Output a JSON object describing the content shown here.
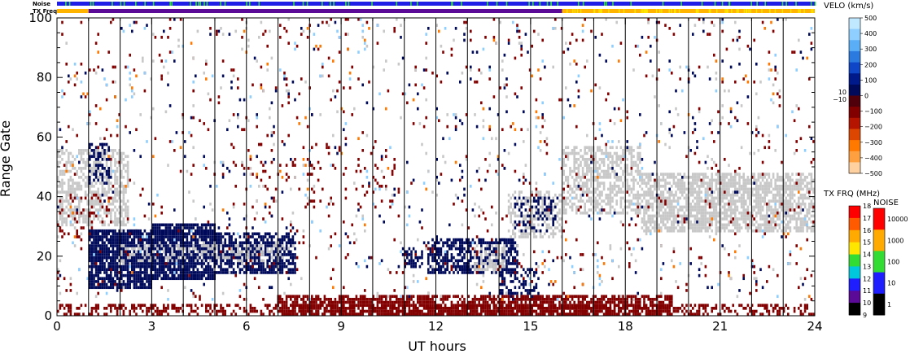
{
  "chart_data": {
    "type": "heatmap",
    "xlabel": "UT hours",
    "ylabel": "Range Gate",
    "xlim": [
      0,
      24
    ],
    "ylim": [
      0,
      100
    ],
    "x_ticks": [
      0,
      3,
      6,
      9,
      12,
      15,
      18,
      21,
      24
    ],
    "y_ticks": [
      0,
      20,
      40,
      60,
      80,
      100
    ],
    "scan_boundaries_ut": [
      1,
      2,
      3,
      4,
      5,
      6,
      7,
      8,
      9,
      10,
      11,
      12,
      13,
      14,
      15,
      16,
      17,
      18,
      19,
      20,
      21,
      22,
      23
    ],
    "status_bars": {
      "noise_label": "Noise",
      "txfreq_label": "TX Freq",
      "noise_color": "#1e1ee6",
      "noise_highlight_color": "#32dc32",
      "txfreq_segments": [
        {
          "ut_start": 0.0,
          "ut_end": 1.0,
          "color": "#ffb400"
        },
        {
          "ut_start": 1.0,
          "ut_end": 16.0,
          "color": "#5a0a96"
        },
        {
          "ut_start": 16.0,
          "ut_end": 24.0,
          "color": "#ffb400"
        }
      ]
    },
    "velocity_colorbar": {
      "title": "VELO (km/s)",
      "range": [
        -500,
        500
      ],
      "tick_labels": [
        "500",
        "400",
        "300",
        "200",
        "100",
        "0",
        "−100",
        "−200",
        "−300",
        "−400",
        "−500"
      ],
      "threshold_labels": [
        "10",
        "−10"
      ],
      "colors": [
        "#c0e8ff",
        "#8fcfff",
        "#5aaef5",
        "#2a7ae0",
        "#0f46c8",
        "#001a8c",
        "#000a5a",
        "#50000a",
        "#820000",
        "#b41400",
        "#dc4600",
        "#ff7800",
        "#ffa040",
        "#ffd0a0"
      ]
    },
    "txfreq_colorbar": {
      "title": "TX FRQ (MHz)",
      "tick_labels": [
        "18",
        "17",
        "16",
        "15",
        "14",
        "13",
        "12",
        "11",
        "10",
        "9"
      ],
      "colors": [
        "#ff0000",
        "#ff5a00",
        "#ffaa00",
        "#ffe600",
        "#32dc32",
        "#00c8dc",
        "#1e1eff",
        "#5a0a96",
        "#000000"
      ]
    },
    "noise_colorbar": {
      "title": "NOISE",
      "tick_labels": [
        "10000",
        "1000",
        "100",
        "10",
        "1"
      ],
      "colors": [
        "#ff0000",
        "#ffaa00",
        "#32dc32",
        "#1e1eff",
        "#000000"
      ]
    },
    "ground_scatter_color": "#c8c8c8",
    "scatter_regions": [
      {
        "ut_start": 0.0,
        "ut_end": 2.3,
        "gate_lo": 30,
        "gate_hi": 56,
        "color": "#c8c8c8",
        "density": 0.55
      },
      {
        "ut_start": 1.0,
        "ut_end": 1.7,
        "gate_lo": 44,
        "gate_hi": 58,
        "color": "#000a5a",
        "density": 0.5
      },
      {
        "ut_start": 0.0,
        "ut_end": 1.8,
        "gate_lo": 26,
        "gate_hi": 40,
        "color": "#820000",
        "density": 0.12
      },
      {
        "ut_start": 1.0,
        "ut_end": 3.0,
        "gate_lo": 9,
        "gate_hi": 29,
        "color": "#000a5a",
        "density": 0.85
      },
      {
        "ut_start": 3.0,
        "ut_end": 5.0,
        "gate_lo": 12,
        "gate_hi": 31,
        "color": "#000a5a",
        "density": 0.88
      },
      {
        "ut_start": 5.0,
        "ut_end": 7.6,
        "gate_lo": 14,
        "gate_hi": 28,
        "color": "#000a5a",
        "density": 0.72
      },
      {
        "ut_start": 2.0,
        "ut_end": 7.2,
        "gate_lo": 18,
        "gate_hi": 24,
        "color": "#c8c8c8",
        "density": 0.3
      },
      {
        "ut_start": 10.9,
        "ut_end": 11.6,
        "gate_lo": 16,
        "gate_hi": 23,
        "color": "#000a5a",
        "density": 0.55
      },
      {
        "ut_start": 11.7,
        "ut_end": 14.6,
        "gate_lo": 14,
        "gate_hi": 26,
        "color": "#000a5a",
        "density": 0.6
      },
      {
        "ut_start": 13.2,
        "ut_end": 14.2,
        "gate_lo": 15,
        "gate_hi": 24,
        "color": "#c8c8c8",
        "density": 0.5
      },
      {
        "ut_start": 14.0,
        "ut_end": 15.3,
        "gate_lo": 5,
        "gate_hi": 16,
        "color": "#000a5a",
        "density": 0.4
      },
      {
        "ut_start": 14.3,
        "ut_end": 16.0,
        "gate_lo": 26,
        "gate_hi": 42,
        "color": "#c8c8c8",
        "density": 0.5
      },
      {
        "ut_start": 14.5,
        "ut_end": 15.9,
        "gate_lo": 28,
        "gate_hi": 40,
        "color": "#000a5a",
        "density": 0.3
      },
      {
        "ut_start": 16.0,
        "ut_end": 18.5,
        "gate_lo": 34,
        "gate_hi": 57,
        "color": "#c8c8c8",
        "density": 0.55
      },
      {
        "ut_start": 18.5,
        "ut_end": 24.0,
        "gate_lo": 28,
        "gate_hi": 48,
        "color": "#c8c8c8",
        "density": 0.7
      },
      {
        "ut_start": 0.0,
        "ut_end": 24.0,
        "gate_lo": 0,
        "gate_hi": 4,
        "color": "#820000",
        "density": 0.45
      },
      {
        "ut_start": 7.0,
        "ut_end": 19.5,
        "gate_lo": 0,
        "gate_hi": 7,
        "color": "#820000",
        "density": 0.7
      },
      {
        "ut_start": 0.0,
        "ut_end": 24.0,
        "gate_lo": 5,
        "gate_hi": 100,
        "color": "#820000",
        "density": 0.018
      },
      {
        "ut_start": 0.0,
        "ut_end": 24.0,
        "gate_lo": 5,
        "gate_hi": 100,
        "color": "#000a5a",
        "density": 0.01
      },
      {
        "ut_start": 5.5,
        "ut_end": 11.0,
        "gate_lo": 36,
        "gate_hi": 58,
        "color": "#820000",
        "density": 0.05
      },
      {
        "ut_start": 0.0,
        "ut_end": 24.0,
        "gate_lo": 5,
        "gate_hi": 100,
        "color": "#8fcfff",
        "density": 0.006
      },
      {
        "ut_start": 0.0,
        "ut_end": 24.0,
        "gate_lo": 5,
        "gate_hi": 100,
        "color": "#ff7800",
        "density": 0.003
      },
      {
        "ut_start": 0.0,
        "ut_end": 24.0,
        "gate_lo": 5,
        "gate_hi": 100,
        "color": "#c8c8c8",
        "density": 0.012
      }
    ]
  }
}
